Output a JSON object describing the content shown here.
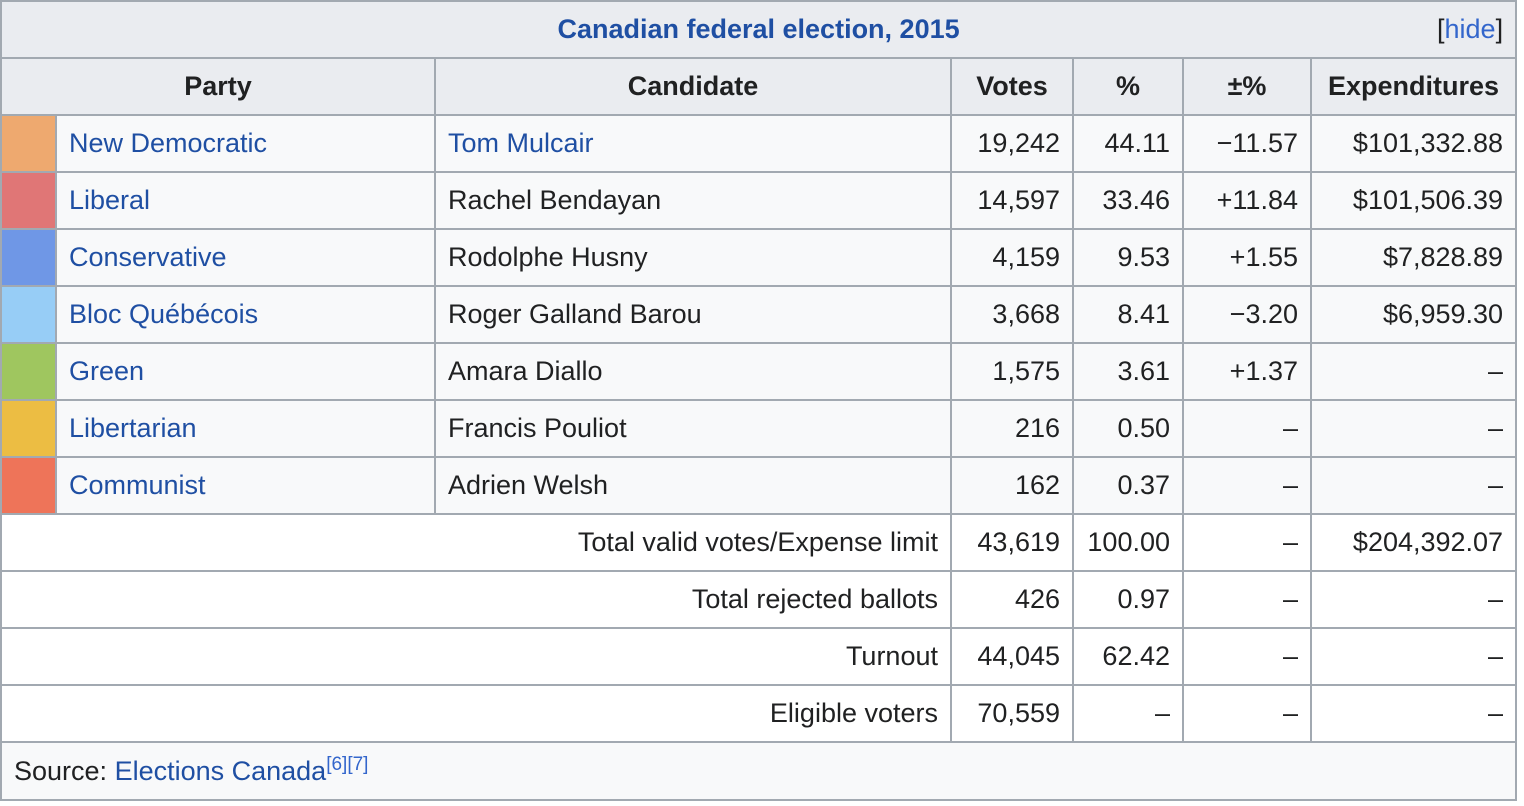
{
  "title": "Canadian federal election, 2015",
  "toggle": {
    "open_bracket": "[",
    "label": "hide",
    "close_bracket": "]"
  },
  "headers": [
    "Party",
    "Candidate",
    "Votes",
    "%",
    "±%",
    "Expenditures"
  ],
  "rows": [
    {
      "color": "#eea96f",
      "party": "New Democratic",
      "candidate": "Tom Mulcair",
      "candidate_link": true,
      "votes": "19,242",
      "pct": "44.11",
      "change": "−11.57",
      "exp": "$101,332.88"
    },
    {
      "color": "#e07676",
      "party": "Liberal",
      "candidate": "Rachel Bendayan",
      "candidate_link": false,
      "votes": "14,597",
      "pct": "33.46",
      "change": "+11.84",
      "exp": "$101,506.39"
    },
    {
      "color": "#6f97e6",
      "party": "Conservative",
      "candidate": "Rodolphe Husny",
      "candidate_link": false,
      "votes": "4,159",
      "pct": "9.53",
      "change": "+1.55",
      "exp": "$7,828.89"
    },
    {
      "color": "#97cdf6",
      "party": "Bloc Québécois",
      "candidate": "Roger Galland Barou",
      "candidate_link": false,
      "votes": "3,668",
      "pct": "8.41",
      "change": "−3.20",
      "exp": "$6,959.30"
    },
    {
      "color": "#9fc65f",
      "party": "Green",
      "candidate": "Amara Diallo",
      "candidate_link": false,
      "votes": "1,575",
      "pct": "3.61",
      "change": "+1.37",
      "exp": "–"
    },
    {
      "color": "#ecbd43",
      "party": "Libertarian",
      "candidate": "Francis Pouliot",
      "candidate_link": false,
      "votes": "216",
      "pct": "0.50",
      "change": "–",
      "exp": "–"
    },
    {
      "color": "#ee7459",
      "party": "Communist",
      "candidate": "Adrien Welsh",
      "candidate_link": false,
      "votes": "162",
      "pct": "0.37",
      "change": "–",
      "exp": "–"
    }
  ],
  "summary": [
    {
      "label": "Total valid votes/Expense limit",
      "votes": "43,619",
      "pct": "100.00",
      "change": "–",
      "exp": "$204,392.07"
    },
    {
      "label": "Total rejected ballots",
      "votes": "426",
      "pct": "0.97",
      "change": "–",
      "exp": "–"
    },
    {
      "label": "Turnout",
      "votes": "44,045",
      "pct": "62.42",
      "change": "–",
      "exp": "–"
    },
    {
      "label": "Eligible voters",
      "votes": "70,559",
      "pct": "–",
      "change": "–",
      "exp": "–"
    }
  ],
  "source": {
    "prefix": "Source: ",
    "link": "Elections Canada",
    "refs": [
      "[6]",
      "[7]"
    ]
  }
}
